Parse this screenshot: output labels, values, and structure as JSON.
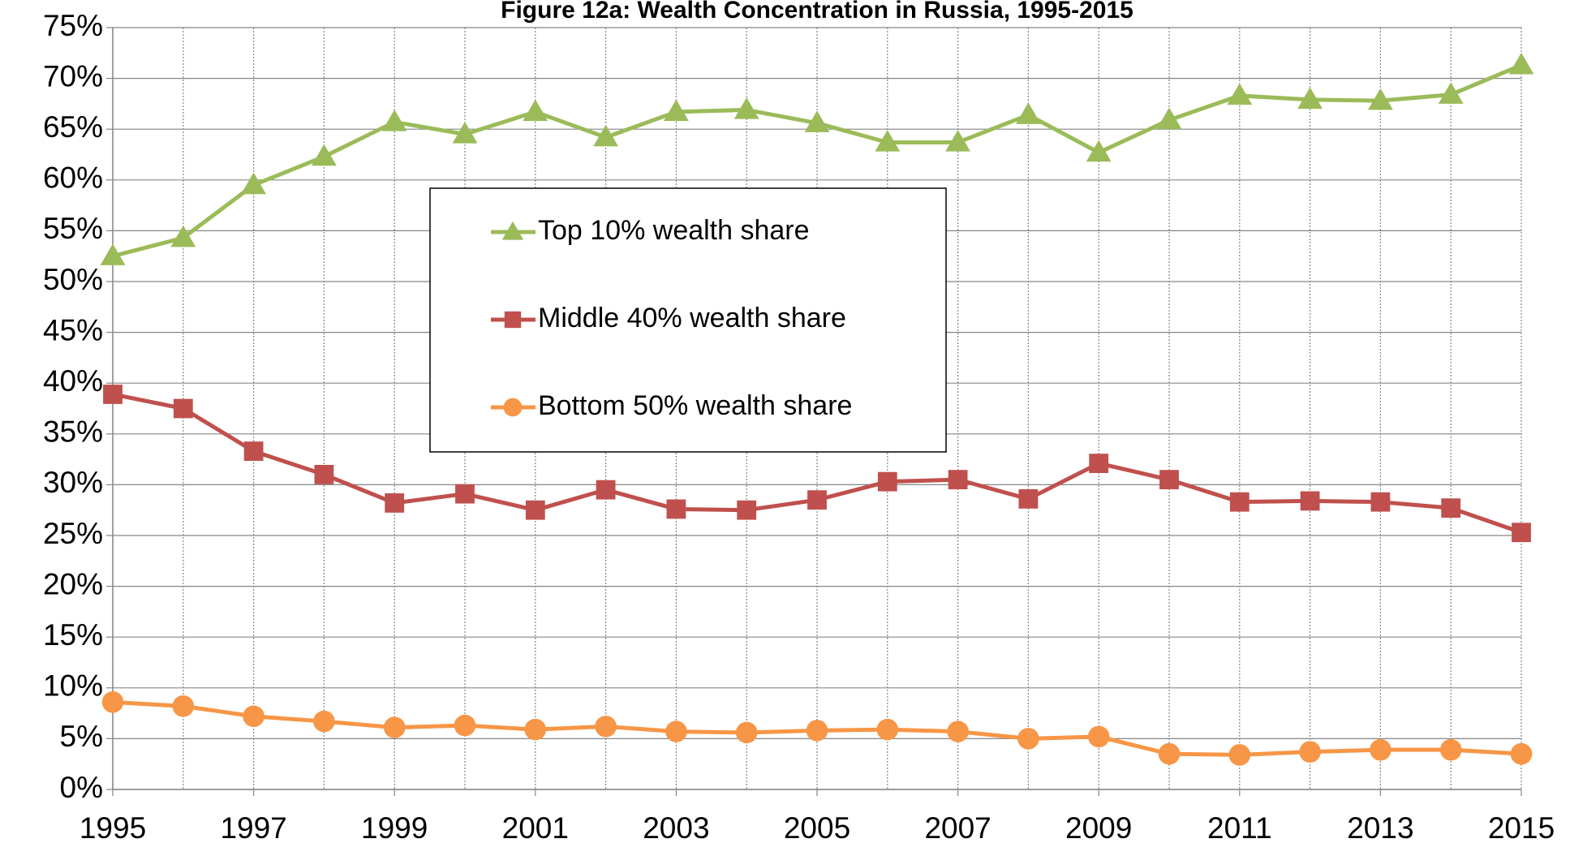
{
  "chart_data": {
    "type": "line",
    "title": "Figure 12a: Wealth Concentration in Russia, 1995-2015",
    "x": [
      1995,
      1996,
      1997,
      1998,
      1999,
      2000,
      2001,
      2002,
      2003,
      2004,
      2005,
      2006,
      2007,
      2008,
      2009,
      2010,
      2011,
      2012,
      2013,
      2014,
      2015
    ],
    "series": [
      {
        "name": "Top 10% wealth share",
        "color": "#9bbb59",
        "marker": "triangle",
        "values": [
          52.5,
          54.3,
          59.5,
          62.3,
          65.7,
          64.5,
          66.7,
          64.2,
          66.7,
          66.9,
          65.6,
          63.7,
          63.7,
          66.4,
          62.7,
          65.9,
          68.3,
          67.9,
          67.8,
          68.4,
          71.3
        ]
      },
      {
        "name": "Middle 40% wealth share",
        "color": "#c0504d",
        "marker": "square",
        "values": [
          38.9,
          37.5,
          33.3,
          31.0,
          28.2,
          29.1,
          27.5,
          29.5,
          27.6,
          27.5,
          28.5,
          30.3,
          30.5,
          28.6,
          32.1,
          30.5,
          28.3,
          28.4,
          28.3,
          27.7,
          25.3
        ]
      },
      {
        "name": "Bottom 50% wealth share",
        "color": "#f79646",
        "marker": "circle",
        "values": [
          8.6,
          8.2,
          7.2,
          6.7,
          6.1,
          6.3,
          5.9,
          6.2,
          5.7,
          5.6,
          5.8,
          5.9,
          5.7,
          5.0,
          5.2,
          3.5,
          3.4,
          3.7,
          3.9,
          3.9,
          3.5
        ]
      }
    ],
    "xlim": [
      1995,
      2015
    ],
    "xticks": [
      1995,
      1997,
      1999,
      2001,
      2003,
      2005,
      2007,
      2009,
      2011,
      2013,
      2015
    ],
    "ylim": [
      0,
      75
    ],
    "yticks": [
      {
        "value": 0,
        "label": "0%"
      },
      {
        "value": 5,
        "label": "5%"
      },
      {
        "value": 10,
        "label": "10%"
      },
      {
        "value": 15,
        "label": "15%"
      },
      {
        "value": 20,
        "label": "20%"
      },
      {
        "value": 25,
        "label": "25%"
      },
      {
        "value": 30,
        "label": "30%"
      },
      {
        "value": 35,
        "label": "35%"
      },
      {
        "value": 40,
        "label": "40%"
      },
      {
        "value": 45,
        "label": "45%"
      },
      {
        "value": 50,
        "label": "50%"
      },
      {
        "value": 55,
        "label": "55%"
      },
      {
        "value": 60,
        "label": "60%"
      },
      {
        "value": 65,
        "label": "65%"
      },
      {
        "value": 70,
        "label": "70%"
      },
      {
        "value": 75,
        "label": "75%"
      }
    ],
    "grid": true,
    "legend": "inside-upper-left"
  }
}
